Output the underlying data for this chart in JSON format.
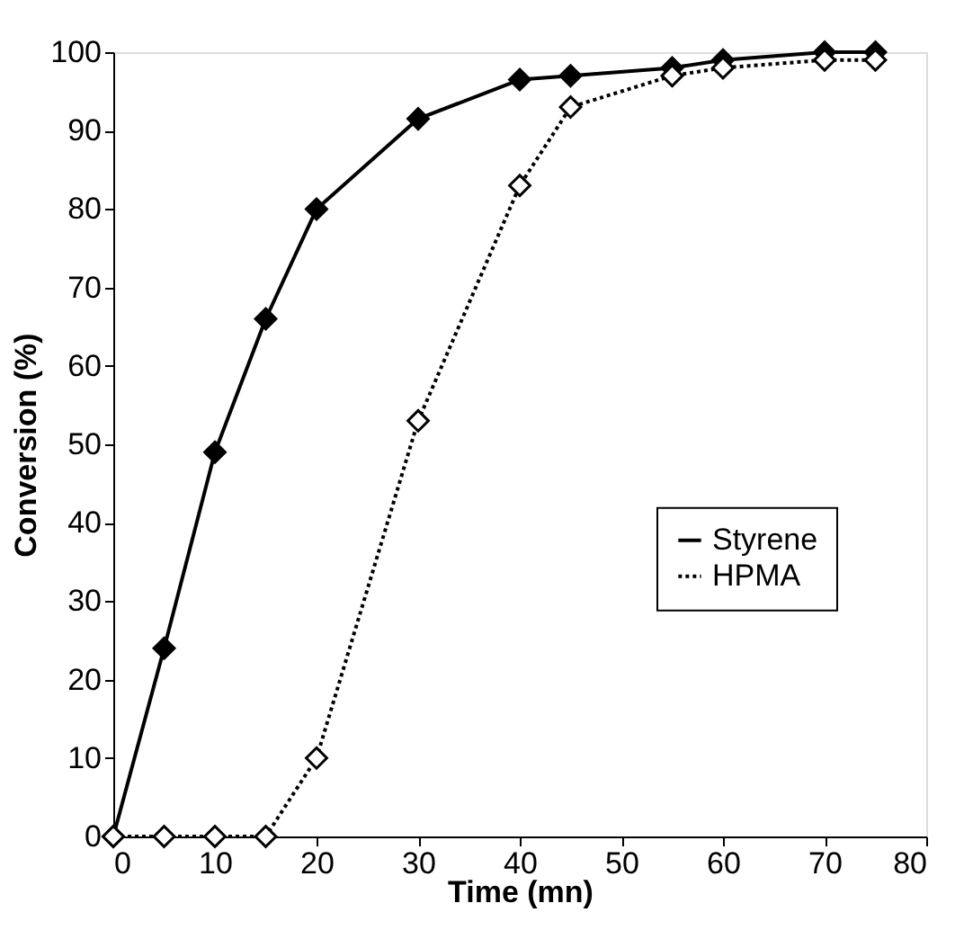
{
  "chart_data": {
    "type": "line",
    "xlabel": "Time (mn)",
    "ylabel": "Conversion (%)",
    "xlim": [
      0,
      80
    ],
    "xticks": [
      0,
      10,
      20,
      30,
      40,
      50,
      60,
      70,
      80
    ],
    "ylim": [
      0,
      100
    ],
    "yticks": [
      0,
      10,
      20,
      30,
      40,
      50,
      60,
      70,
      80,
      90,
      100
    ],
    "grid": false,
    "legend": "right",
    "marker": "diamond",
    "series": [
      {
        "name": "Styrene",
        "color": "#000000",
        "line_style": "solid",
        "x": [
          0,
          5,
          10,
          15,
          20,
          30,
          40,
          45,
          55,
          60,
          70,
          75
        ],
        "values": [
          0,
          24,
          49,
          66,
          80,
          91.5,
          96.5,
          97,
          98,
          99,
          100,
          100
        ]
      },
      {
        "name": "HPMA",
        "color": "#000000",
        "line_style": "dotted",
        "x": [
          0,
          5,
          10,
          15,
          20,
          30,
          40,
          45,
          55,
          60,
          70,
          75
        ],
        "values": [
          0,
          0,
          0,
          0,
          10,
          53,
          83,
          93,
          97,
          98,
          99,
          99
        ]
      }
    ]
  }
}
